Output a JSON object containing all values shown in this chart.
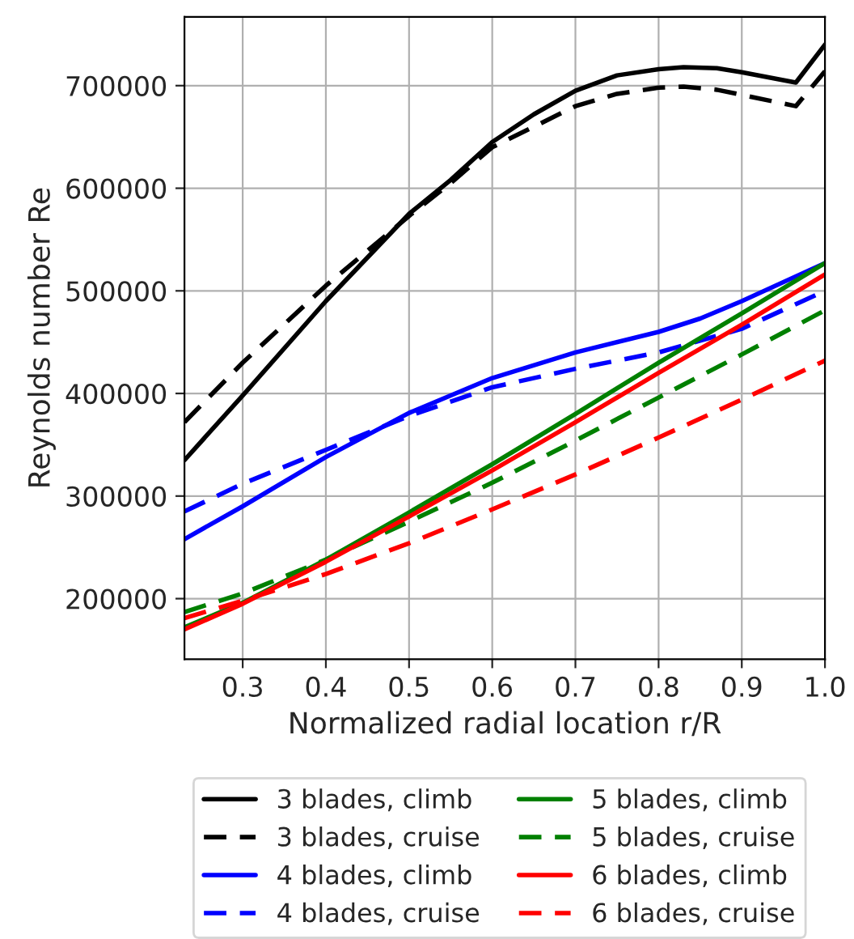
{
  "chart_data": {
    "type": "line",
    "xlabel": "Normalized radial location r/R",
    "ylabel": "Reynolds number Re",
    "xlim": [
      0.23,
      1.0
    ],
    "ylim": [
      141000,
      767000
    ],
    "xticks": [
      {
        "value": 0.3,
        "label": "0.3"
      },
      {
        "value": 0.4,
        "label": "0.4"
      },
      {
        "value": 0.5,
        "label": "0.5"
      },
      {
        "value": 0.6,
        "label": "0.6"
      },
      {
        "value": 0.7,
        "label": "0.7"
      },
      {
        "value": 0.8,
        "label": "0.8"
      },
      {
        "value": 0.9,
        "label": "0.9"
      },
      {
        "value": 1.0,
        "label": "1.0"
      }
    ],
    "yticks": [
      200000,
      300000,
      400000,
      500000,
      600000,
      700000
    ],
    "grid": true,
    "legend": "bottom",
    "marker": "none",
    "series": [
      {
        "name": "3 blades, climb",
        "color": "#000000",
        "line_style": "solid",
        "x": [
          0.23,
          0.3,
          0.4,
          0.5,
          0.55,
          0.6,
          0.65,
          0.7,
          0.75,
          0.8,
          0.83,
          0.87,
          0.9,
          0.965,
          1.0
        ],
        "values": [
          335000,
          398000,
          490000,
          575000,
          608000,
          645000,
          672000,
          695000,
          710000,
          716000,
          718000,
          717000,
          713000,
          703000,
          740000
        ]
      },
      {
        "name": "3 blades, cruise",
        "color": "#000000",
        "line_style": "dashed",
        "x": [
          0.23,
          0.3,
          0.4,
          0.5,
          0.55,
          0.6,
          0.7,
          0.75,
          0.8,
          0.83,
          0.87,
          0.9,
          0.965,
          1.0
        ],
        "values": [
          372000,
          430000,
          505000,
          573000,
          605000,
          640000,
          680000,
          692000,
          698000,
          699000,
          696000,
          691000,
          680000,
          714000
        ]
      },
      {
        "name": "4 blades, climb",
        "color": "#0000ff",
        "line_style": "solid",
        "x": [
          0.23,
          0.3,
          0.4,
          0.5,
          0.6,
          0.7,
          0.8,
          0.85,
          0.9,
          1.0
        ],
        "values": [
          258000,
          290000,
          338000,
          381000,
          415000,
          440000,
          460000,
          473000,
          490000,
          527000
        ]
      },
      {
        "name": "4 blades, cruise",
        "color": "#0000ff",
        "line_style": "dashed",
        "x": [
          0.23,
          0.3,
          0.4,
          0.5,
          0.6,
          0.7,
          0.8,
          0.9,
          1.0
        ],
        "values": [
          285000,
          312000,
          345000,
          378000,
          406000,
          424000,
          440000,
          463000,
          500000
        ]
      },
      {
        "name": "5 blades, climb",
        "color": "#008000",
        "line_style": "solid",
        "x": [
          0.23,
          0.3,
          0.4,
          0.5,
          0.6,
          0.7,
          0.8,
          0.9,
          1.0
        ],
        "values": [
          172000,
          196000,
          238000,
          284000,
          331000,
          380000,
          430000,
          478000,
          527000
        ]
      },
      {
        "name": "5 blades, cruise",
        "color": "#008000",
        "line_style": "dashed",
        "x": [
          0.23,
          0.3,
          0.4,
          0.5,
          0.6,
          0.7,
          0.8,
          0.9,
          1.0
        ],
        "values": [
          187000,
          205000,
          238000,
          275000,
          313000,
          354000,
          396000,
          438000,
          481000
        ]
      },
      {
        "name": "6 blades, climb",
        "color": "#ff0000",
        "line_style": "solid",
        "x": [
          0.23,
          0.3,
          0.4,
          0.5,
          0.6,
          0.7,
          0.8,
          0.9,
          1.0
        ],
        "values": [
          170000,
          195000,
          236000,
          280000,
          325000,
          372000,
          420000,
          467000,
          516000
        ]
      },
      {
        "name": "6 blades, cruise",
        "color": "#ff0000",
        "line_style": "dashed",
        "x": [
          0.23,
          0.3,
          0.4,
          0.5,
          0.6,
          0.7,
          0.8,
          0.9,
          1.0
        ],
        "values": [
          181000,
          198000,
          224000,
          254000,
          287000,
          321000,
          357000,
          394000,
          432000
        ]
      }
    ]
  }
}
